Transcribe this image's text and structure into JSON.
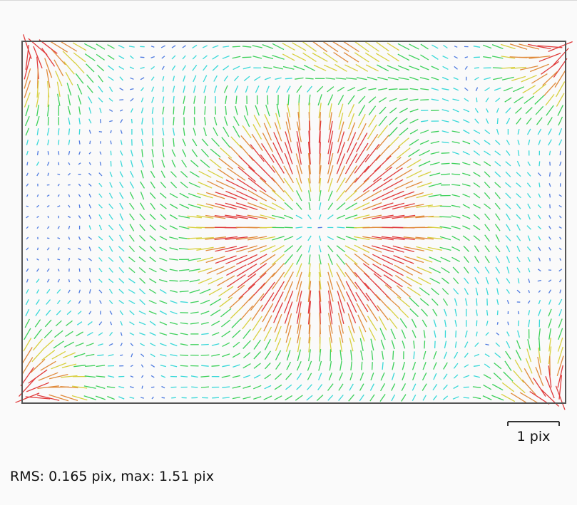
{
  "chart_data": {
    "type": "vector-field",
    "title": "",
    "xlabel": "",
    "ylabel": "",
    "description_of_field": "per-grid-point residual displacement vectors, colour-coded by magnitude (cyan small, green/yellow medium, red large)",
    "scale_bar": {
      "label": "1 pix",
      "value": 1.0
    },
    "stats": {
      "rms": 0.165,
      "max": 1.51,
      "unit": "pix"
    },
    "colormap": [
      {
        "magnitude": 0.0,
        "color": "#4d7ae0"
      },
      {
        "magnitude": 0.08,
        "color": "#38d8d8"
      },
      {
        "magnitude": 0.2,
        "color": "#3cd05a"
      },
      {
        "magnitude": 0.4,
        "color": "#d8d040"
      },
      {
        "magnitude": 0.55,
        "color": "#e08a3a"
      },
      {
        "magnitude": 0.7,
        "color": "#e03a3a"
      }
    ],
    "grid": {
      "columns": 52,
      "rows": 34,
      "extent": [
        -1.5,
        1.5
      ]
    },
    "features": [
      {
        "kind": "radial-outward",
        "center": [
          0.12,
          0.03
        ],
        "strength": 0.75
      },
      {
        "kind": "corner-swirl",
        "corner": "all",
        "strength": 1.51
      }
    ]
  },
  "stats_text": "RMS: 0.165 pix, max: 1.51 pix",
  "scale_label": "1 pix",
  "colors": {
    "frame": "#555555",
    "background": "#fafafa"
  }
}
